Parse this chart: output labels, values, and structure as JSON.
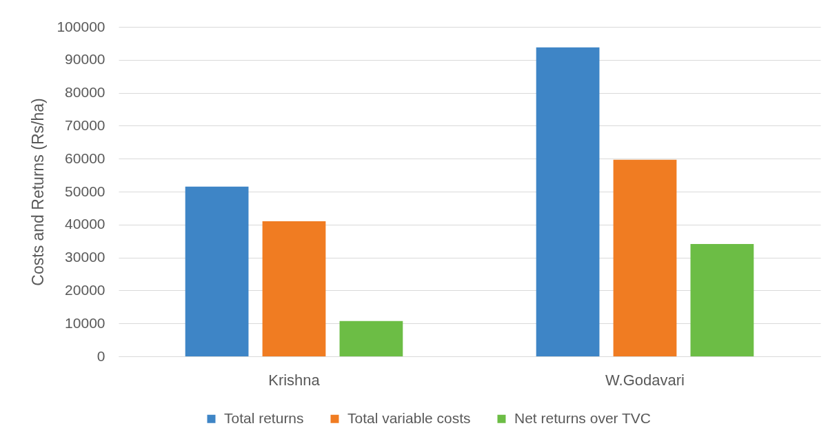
{
  "chart_data": {
    "type": "bar",
    "categories": [
      "Krishna",
      "W.Godavari"
    ],
    "series": [
      {
        "name": "Total returns",
        "color": "#3e85c6",
        "values": [
          51500,
          93800
        ]
      },
      {
        "name": "Total variable costs",
        "color": "#f07c22",
        "values": [
          41000,
          59700
        ]
      },
      {
        "name": "Net returns over TVC",
        "color": "#6cbd45",
        "values": [
          10700,
          34100
        ]
      }
    ],
    "ylabel": "Costs and Returns (Rs/ha)",
    "ylim": [
      0,
      100000
    ],
    "yticks": [
      0,
      10000,
      20000,
      30000,
      40000,
      50000,
      60000,
      70000,
      80000,
      90000,
      100000
    ],
    "grid": "y",
    "legend": "bottom"
  }
}
